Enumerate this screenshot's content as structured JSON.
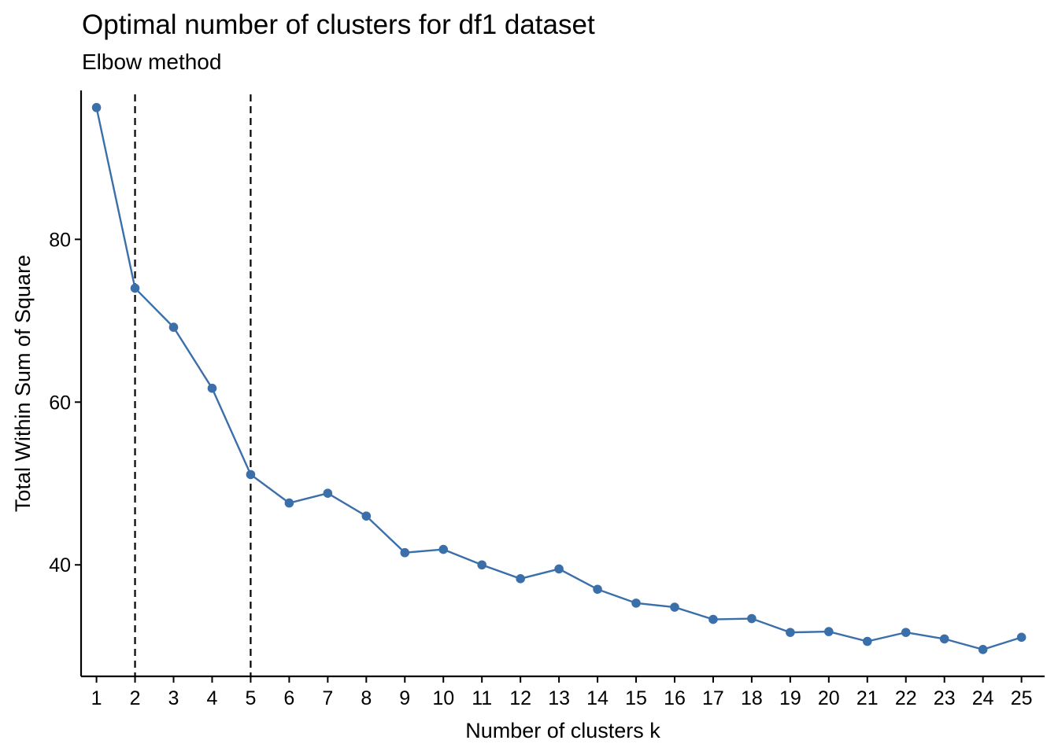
{
  "chart_data": {
    "type": "line",
    "title": "Optimal number of clusters for df1 dataset",
    "subtitle": "Elbow method",
    "xlabel": "Number of clusters k",
    "ylabel": "Total Within Sum of Square",
    "x": [
      1,
      2,
      3,
      4,
      5,
      6,
      7,
      8,
      9,
      10,
      11,
      12,
      13,
      14,
      15,
      16,
      17,
      18,
      19,
      20,
      21,
      22,
      23,
      24,
      25
    ],
    "series": [
      {
        "values": [
          96.2,
          74.0,
          69.2,
          61.7,
          51.1,
          47.6,
          48.8,
          46.0,
          41.5,
          41.9,
          40.0,
          38.3,
          39.5,
          37.0,
          35.3,
          34.8,
          33.3,
          33.4,
          31.7,
          31.8,
          30.6,
          31.7,
          30.9,
          29.6,
          31.1
        ]
      }
    ],
    "vlines": [
      2,
      5
    ],
    "xlim": [
      0.6,
      25.6
    ],
    "ylim": [
      26.3,
      98.3
    ],
    "yticks": [
      40,
      60,
      80
    ],
    "xticks": [
      1,
      2,
      3,
      4,
      5,
      6,
      7,
      8,
      9,
      10,
      11,
      12,
      13,
      14,
      15,
      16,
      17,
      18,
      19,
      20,
      21,
      22,
      23,
      24,
      25
    ],
    "grid": false,
    "legend": "none",
    "line_color": "#3B6FAA",
    "vline_color": "#000000"
  }
}
